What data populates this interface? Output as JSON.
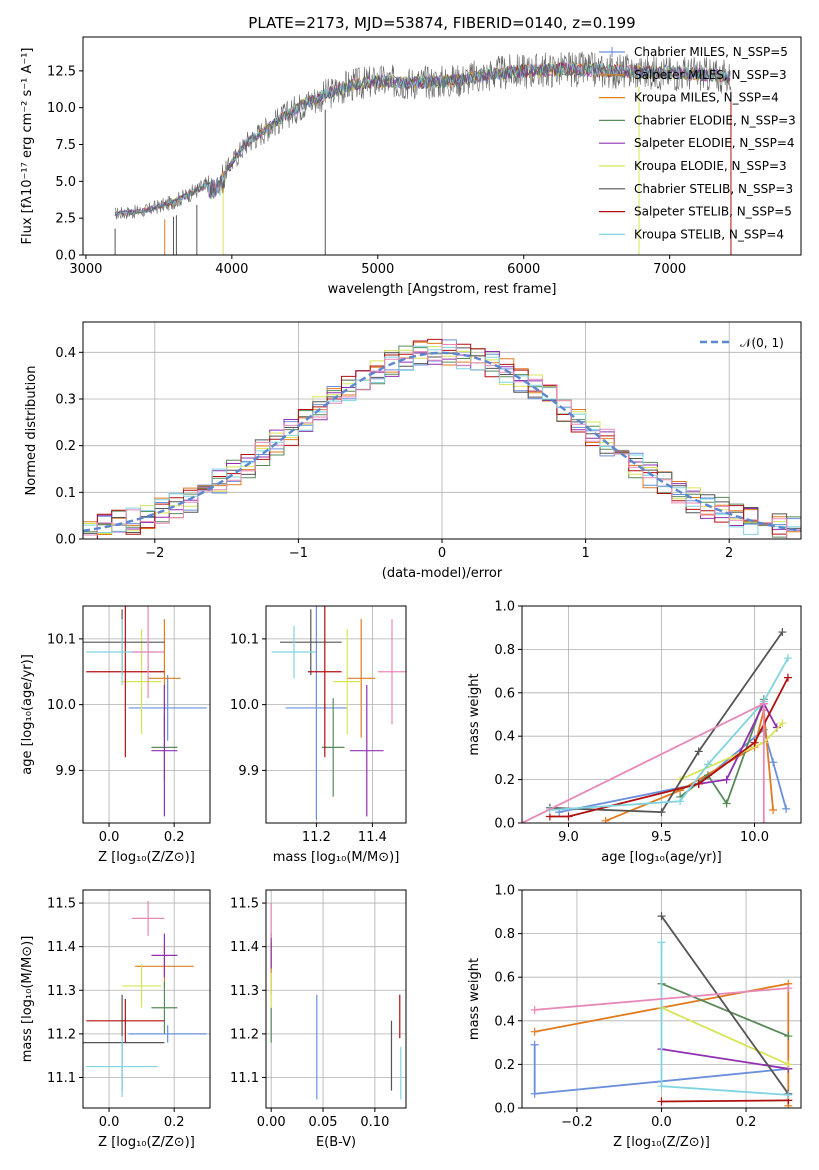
{
  "colors": {
    "blue": "#6a8fdc",
    "orange": "#e07b20",
    "green": "#5a8a5a",
    "purple": "#9030b0",
    "yellow": "#d8e458",
    "gray": "#555555",
    "red": "#b01010",
    "cyan": "#80d4e0",
    "pink": "#e888b8",
    "grid": "#b0b0b0"
  },
  "chart_data": [
    {
      "type": "line",
      "title": "PLATE=2173, MJD=53874, FIBERID=0140, z=0.199",
      "xlabel": "wavelength [Angstrom, rest frame]",
      "ylabel": "Flux [fλ10⁻¹⁷ erg cm⁻² s⁻¹ A⁻¹]",
      "xlim": [
        2980,
        7900
      ],
      "ylim": [
        0,
        14.8
      ],
      "xticks": [
        "3000",
        "4000",
        "5000",
        "6000",
        "7000"
      ],
      "yticks": [
        "0.0",
        "2.5",
        "5.0",
        "7.5",
        "10.0",
        "12.5"
      ],
      "legend": [
        "Chabrier MILES, N_SSP=5",
        "Salpeter MILES, N_SSP=3",
        "Kroupa MILES, N_SSP=4",
        "Chabrier ELODIE, N_SSP=3",
        "Salpeter ELODIE, N_SSP=4",
        "Kroupa ELODIE, N_SSP=3",
        "Chabrier STELIB, N_SSP=3",
        "Salpeter STELIB, N_SSP=5",
        "Kroupa STELIB, N_SSP=4"
      ],
      "legend_loc": "upper right",
      "envelope": {
        "x": [
          3200,
          3400,
          3600,
          3800,
          3950,
          4100,
          4300,
          4500,
          4800,
          5000,
          5200,
          5500,
          5800,
          6000,
          6300,
          6600,
          6900,
          7200,
          7500
        ],
        "y": [
          2.8,
          3.0,
          3.6,
          4.6,
          5.6,
          7.6,
          9.0,
          10.3,
          11.5,
          11.8,
          11.7,
          11.8,
          12.3,
          12.5,
          12.6,
          12.5,
          12.4,
          12.3,
          12.0
        ]
      }
    },
    {
      "type": "histogram",
      "xlabel": "(data-model)/error",
      "ylabel": "Normed distribution",
      "xlim": [
        -2.5,
        2.5
      ],
      "ylim": [
        0,
        0.465
      ],
      "xticks": [
        "−2",
        "−1",
        "0",
        "1",
        "2"
      ],
      "yticks": [
        "0.0",
        "0.1",
        "0.2",
        "0.3",
        "0.4"
      ],
      "legend": [
        "𝒩(0, 1)"
      ],
      "legend_loc": "upper right",
      "bin_width": 0.1
    },
    {
      "type": "scatter",
      "xlabel": "Z [log₁₀(Z/Z⊙)]",
      "ylabel": "age  [log₁₀(age/yr)]",
      "xlim": [
        -0.08,
        0.31
      ],
      "ylim": [
        9.82,
        10.15
      ],
      "xticks": [
        "0.0",
        "0.2"
      ],
      "yticks": [
        "9.9",
        "10.0",
        "10.1"
      ],
      "points": [
        {
          "c": "blue",
          "x": 0.18,
          "y": 9.995,
          "xe": 0.12,
          "ye": 0.05
        },
        {
          "c": "orange",
          "x": 0.17,
          "y": 10.04,
          "xe": 0.05,
          "ye": 0.09
        },
        {
          "c": "green",
          "x": 0.17,
          "y": 9.935,
          "xe": 0.04,
          "ye": 0.05
        },
        {
          "c": "purple",
          "x": 0.17,
          "y": 9.93,
          "xe": 0.04,
          "ye": 0.1
        },
        {
          "c": "yellow",
          "x": 0.1,
          "y": 10.035,
          "xe": 0.06,
          "ye": 0.08
        },
        {
          "c": "gray",
          "x": 0.04,
          "y": 10.095,
          "xe": 0.13,
          "ye": 0.05
        },
        {
          "c": "red",
          "x": 0.05,
          "y": 10.05,
          "xe": 0.12,
          "ye": 0.13
        },
        {
          "c": "cyan",
          "x": 0.04,
          "y": 10.08,
          "xe": 0.11,
          "ye": 0.05
        },
        {
          "c": "pink",
          "x": 0.12,
          "y": 10.08,
          "xe": 0.05,
          "ye": 0.07
        }
      ]
    },
    {
      "type": "scatter",
      "xlabel": "mass [log₁₀(M/M⊙)]",
      "xlim": [
        11.02,
        11.52
      ],
      "ylim": [
        9.82,
        10.15
      ],
      "xticks": [
        "11.2",
        "11.4"
      ],
      "yticks": [
        "9.9",
        "10.0",
        "10.1"
      ],
      "points": [
        {
          "c": "blue",
          "x": 11.2,
          "y": 9.995,
          "xe": 0.11,
          "ye": 0.17
        },
        {
          "c": "orange",
          "x": 11.36,
          "y": 10.04,
          "xe": 0.05,
          "ye": 0.09
        },
        {
          "c": "green",
          "x": 11.26,
          "y": 9.935,
          "xe": 0.04,
          "ye": 0.075
        },
        {
          "c": "purple",
          "x": 11.38,
          "y": 9.93,
          "xe": 0.06,
          "ye": 0.1
        },
        {
          "c": "yellow",
          "x": 11.31,
          "y": 10.035,
          "xe": 0.05,
          "ye": 0.08
        },
        {
          "c": "gray",
          "x": 11.18,
          "y": 10.095,
          "xe": 0.11,
          "ye": 0.05
        },
        {
          "c": "red",
          "x": 11.23,
          "y": 10.05,
          "xe": 0.06,
          "ye": 0.13
        },
        {
          "c": "cyan",
          "x": 11.12,
          "y": 10.08,
          "xe": 0.08,
          "ye": 0.04
        },
        {
          "c": "pink",
          "x": 11.47,
          "y": 10.05,
          "xe": 0.05,
          "ye": 0.08
        }
      ]
    },
    {
      "type": "line",
      "xlabel": "age  [log₁₀(age/yr)]",
      "ylabel": "mass weight",
      "xlim": [
        8.75,
        10.25
      ],
      "ylim": [
        0,
        1.0
      ],
      "xticks": [
        "9.0",
        "9.5",
        "10.0"
      ],
      "yticks": [
        "0.0",
        "0.2",
        "0.4",
        "0.6",
        "0.8",
        "1.0"
      ],
      "series": [
        {
          "c": "blue",
          "x": [
            8.95,
            9.7,
            10.05,
            10.1,
            10.17
          ],
          "y": [
            0.05,
            0.18,
            0.43,
            0.28,
            0.065
          ]
        },
        {
          "c": "orange",
          "x": [
            9.2,
            9.6,
            10.0,
            10.05,
            10.1
          ],
          "y": [
            0.01,
            0.15,
            0.35,
            0.52,
            0.06
          ]
        },
        {
          "c": "green",
          "x": [
            9.6,
            9.75,
            9.85,
            10.05
          ],
          "y": [
            0.12,
            0.22,
            0.09,
            0.57
          ]
        },
        {
          "c": "purple",
          "x": [
            9.7,
            9.85,
            10.05,
            10.12
          ],
          "y": [
            0.18,
            0.2,
            0.55,
            0.44
          ]
        },
        {
          "c": "yellow",
          "x": [
            9.6,
            10.05,
            10.15
          ],
          "y": [
            0.2,
            0.37,
            0.46
          ]
        },
        {
          "c": "gray",
          "x": [
            8.9,
            9.5,
            9.7,
            10.15
          ],
          "y": [
            0.07,
            0.05,
            0.33,
            0.88
          ]
        },
        {
          "c": "red",
          "x": [
            8.9,
            9.0,
            9.7,
            10.0,
            10.18
          ],
          "y": [
            0.03,
            0.03,
            0.18,
            0.37,
            0.67
          ]
        },
        {
          "c": "cyan",
          "x": [
            8.9,
            9.6,
            9.75,
            10.05,
            10.18
          ],
          "y": [
            0.06,
            0.1,
            0.27,
            0.56,
            0.76
          ]
        },
        {
          "c": "pink",
          "x": [
            8.75,
            10.05,
            10.05
          ],
          "y": [
            0.0,
            0.55,
            0.0
          ]
        }
      ]
    },
    {
      "type": "scatter",
      "xlabel": "Z [log₁₀(Z/Z⊙)]",
      "ylabel": "mass [log₁₀(M/M⊙)]",
      "xlim": [
        -0.08,
        0.31
      ],
      "ylim": [
        11.03,
        11.53
      ],
      "xticks": [
        "0.0",
        "0.2"
      ],
      "yticks": [
        "11.1",
        "11.2",
        "11.3",
        "11.4",
        "11.5"
      ],
      "points": [
        {
          "c": "blue",
          "x": 0.18,
          "y": 11.2,
          "xe": 0.12,
          "ye": 0.02
        },
        {
          "c": "orange",
          "x": 0.17,
          "y": 11.355,
          "xe": 0.09,
          "ye": 0.05
        },
        {
          "c": "green",
          "x": 0.17,
          "y": 11.26,
          "xe": 0.04,
          "ye": 0.06
        },
        {
          "c": "purple",
          "x": 0.17,
          "y": 11.38,
          "xe": 0.04,
          "ye": 0.05
        },
        {
          "c": "yellow",
          "x": 0.1,
          "y": 11.31,
          "xe": 0.06,
          "ye": 0.05
        },
        {
          "c": "gray",
          "x": 0.04,
          "y": 11.18,
          "xe": 0.13,
          "ye": 0.11
        },
        {
          "c": "red",
          "x": 0.05,
          "y": 11.23,
          "xe": 0.12,
          "ye": 0.05
        },
        {
          "c": "cyan",
          "x": 0.04,
          "y": 11.125,
          "xe": 0.11,
          "ye": 0.07
        },
        {
          "c": "pink",
          "x": 0.12,
          "y": 11.465,
          "xe": 0.05,
          "ye": 0.04
        }
      ]
    },
    {
      "type": "scatter",
      "xlabel": "E(B-V)",
      "xlim": [
        -0.005,
        0.13
      ],
      "ylim": [
        11.03,
        11.53
      ],
      "xticks": [
        "0.00",
        "0.05",
        "0.10"
      ],
      "yticks": [
        "11.1",
        "11.2",
        "11.3",
        "11.4",
        "11.5"
      ],
      "points": [
        {
          "c": "blue",
          "x": 0.044,
          "y": 11.17,
          "ye": 0.12
        },
        {
          "c": "orange",
          "x": 0.0,
          "y": 11.35,
          "ye": 0.06
        },
        {
          "c": "green",
          "x": 0.0,
          "y": 11.22,
          "ye": 0.04
        },
        {
          "c": "purple",
          "x": 0.0,
          "y": 11.39,
          "ye": 0.04
        },
        {
          "c": "yellow",
          "x": 0.0,
          "y": 11.3,
          "ye": 0.04
        },
        {
          "c": "gray",
          "x": 0.116,
          "y": 11.15,
          "ye": 0.08
        },
        {
          "c": "red",
          "x": 0.124,
          "y": 11.24,
          "ye": 0.05
        },
        {
          "c": "cyan",
          "x": 0.125,
          "y": 11.11,
          "ye": 0.06
        },
        {
          "c": "pink",
          "x": 0.0,
          "y": 11.46,
          "ye": 0.04
        }
      ]
    },
    {
      "type": "line",
      "xlabel": "Z [log₁₀(Z/Z⊙)]",
      "ylabel": "mass weight",
      "xlim": [
        -0.33,
        0.33
      ],
      "ylim": [
        0,
        1.0
      ],
      "xticks": [
        "−0.2",
        "0.0",
        "0.2"
      ],
      "yticks": [
        "0.0",
        "0.2",
        "0.4",
        "0.6",
        "0.8",
        "1.0"
      ],
      "series": [
        {
          "c": "blue",
          "x": [
            -0.3,
            -0.3,
            0.3
          ],
          "y": [
            0.29,
            0.065,
            0.18
          ]
        },
        {
          "c": "orange",
          "x": [
            -0.3,
            0.3,
            0.3
          ],
          "y": [
            0.35,
            0.57,
            0.01
          ]
        },
        {
          "c": "green",
          "x": [
            0.0,
            0.3
          ],
          "y": [
            0.57,
            0.33
          ]
        },
        {
          "c": "purple",
          "x": [
            0.0,
            0.3
          ],
          "y": [
            0.27,
            0.18
          ]
        },
        {
          "c": "yellow",
          "x": [
            0.0,
            0.3
          ],
          "y": [
            0.46,
            0.2
          ]
        },
        {
          "c": "gray",
          "x": [
            0.0,
            0.3
          ],
          "y": [
            0.88,
            0.065
          ]
        },
        {
          "c": "red",
          "x": [
            0.0,
            0.3
          ],
          "y": [
            0.03,
            0.035
          ]
        },
        {
          "c": "cyan",
          "x": [
            0.0,
            0.0,
            0.3
          ],
          "y": [
            0.76,
            0.1,
            0.06
          ]
        },
        {
          "c": "pink",
          "x": [
            -0.3,
            0.3
          ],
          "y": [
            0.45,
            0.55
          ]
        }
      ]
    }
  ]
}
